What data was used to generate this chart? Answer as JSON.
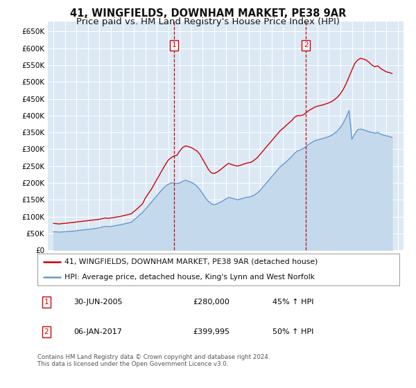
{
  "title": "41, WINGFIELDS, DOWNHAM MARKET, PE38 9AR",
  "subtitle": "Price paid vs. HM Land Registry's House Price Index (HPI)",
  "title_fontsize": 10.5,
  "subtitle_fontsize": 9.5,
  "ylim": [
    0,
    680000
  ],
  "yticks": [
    0,
    50000,
    100000,
    150000,
    200000,
    250000,
    300000,
    350000,
    400000,
    450000,
    500000,
    550000,
    600000,
    650000
  ],
  "ytick_labels": [
    "£0",
    "£50K",
    "£100K",
    "£150K",
    "£200K",
    "£250K",
    "£300K",
    "£350K",
    "£400K",
    "£450K",
    "£500K",
    "£550K",
    "£600K",
    "£650K"
  ],
  "xlim_start": 1994.5,
  "xlim_end": 2025.5,
  "background_color": "#ffffff",
  "plot_bg_color": "#dce9f5",
  "grid_color": "#ffffff",
  "red_line_color": "#cc0000",
  "blue_line_color": "#6699cc",
  "blue_fill_color": "#c5d9ed",
  "vline_color": "#cc0000",
  "sale1_x": 2005.5,
  "sale1_price": 280000,
  "sale1_label": "1",
  "sale1_date": "30-JUN-2005",
  "sale1_hpi": "45% ↑ HPI",
  "sale2_x": 2017.0,
  "sale2_price": 399995,
  "sale2_label": "2",
  "sale2_date": "06-JAN-2017",
  "sale2_hpi": "50% ↑ HPI",
  "legend_line1": "41, WINGFIELDS, DOWNHAM MARKET, PE38 9AR (detached house)",
  "legend_line2": "HPI: Average price, detached house, King's Lynn and West Norfolk",
  "footer": "Contains HM Land Registry data © Crown copyright and database right 2024.\nThis data is licensed under the Open Government Licence v3.0.",
  "red_data_x": [
    1995,
    1995.25,
    1995.5,
    1995.75,
    1996,
    1996.25,
    1996.5,
    1996.75,
    1997,
    1997.25,
    1997.5,
    1997.75,
    1998,
    1998.25,
    1998.5,
    1998.75,
    1999,
    1999.25,
    1999.5,
    1999.75,
    2000,
    2000.25,
    2000.5,
    2000.75,
    2001,
    2001.25,
    2001.5,
    2001.75,
    2002,
    2002.25,
    2002.5,
    2002.75,
    2003,
    2003.25,
    2003.5,
    2003.75,
    2004,
    2004.25,
    2004.5,
    2004.75,
    2005,
    2005.25,
    2005.5,
    2005.75,
    2006,
    2006.25,
    2006.5,
    2006.75,
    2007,
    2007.25,
    2007.5,
    2007.75,
    2008,
    2008.25,
    2008.5,
    2008.75,
    2009,
    2009.25,
    2009.5,
    2009.75,
    2010,
    2010.25,
    2010.5,
    2010.75,
    2011,
    2011.25,
    2011.5,
    2011.75,
    2012,
    2012.25,
    2012.5,
    2012.75,
    2013,
    2013.25,
    2013.5,
    2013.75,
    2014,
    2014.25,
    2014.5,
    2014.75,
    2015,
    2015.25,
    2015.5,
    2015.75,
    2016,
    2016.25,
    2016.5,
    2016.75,
    2017,
    2017.25,
    2017.5,
    2017.75,
    2018,
    2018.25,
    2018.5,
    2018.75,
    2019,
    2019.25,
    2019.5,
    2019.75,
    2020,
    2020.25,
    2020.5,
    2020.75,
    2021,
    2021.25,
    2021.5,
    2021.75,
    2022,
    2022.25,
    2022.5,
    2022.75,
    2023,
    2023.25,
    2023.5,
    2023.75,
    2024,
    2024.25,
    2024.5
  ],
  "red_data_y": [
    80000,
    79000,
    78000,
    79500,
    80000,
    81000,
    82000,
    82500,
    84000,
    85000,
    86000,
    87000,
    88000,
    89000,
    90000,
    91000,
    92000,
    94000,
    96000,
    95000,
    96000,
    97000,
    99000,
    100000,
    102000,
    104000,
    106000,
    108000,
    115000,
    122000,
    130000,
    138000,
    155000,
    168000,
    180000,
    195000,
    210000,
    225000,
    240000,
    255000,
    268000,
    275000,
    280000,
    282000,
    295000,
    305000,
    310000,
    308000,
    305000,
    300000,
    295000,
    285000,
    270000,
    255000,
    240000,
    230000,
    228000,
    232000,
    238000,
    245000,
    252000,
    258000,
    255000,
    252000,
    250000,
    252000,
    255000,
    258000,
    260000,
    262000,
    268000,
    275000,
    285000,
    295000,
    305000,
    315000,
    325000,
    335000,
    345000,
    355000,
    362000,
    370000,
    378000,
    385000,
    395000,
    400000,
    399995,
    402000,
    408000,
    415000,
    420000,
    425000,
    428000,
    430000,
    432000,
    435000,
    438000,
    442000,
    448000,
    455000,
    465000,
    478000,
    495000,
    515000,
    535000,
    555000,
    565000,
    570000,
    568000,
    565000,
    558000,
    550000,
    545000,
    548000,
    540000,
    535000,
    530000,
    528000,
    525000
  ],
  "blue_data_x": [
    1995,
    1995.25,
    1995.5,
    1995.75,
    1996,
    1996.25,
    1996.5,
    1996.75,
    1997,
    1997.25,
    1997.5,
    1997.75,
    1998,
    1998.25,
    1998.5,
    1998.75,
    1999,
    1999.25,
    1999.5,
    1999.75,
    2000,
    2000.25,
    2000.5,
    2000.75,
    2001,
    2001.25,
    2001.5,
    2001.75,
    2002,
    2002.25,
    2002.5,
    2002.75,
    2003,
    2003.25,
    2003.5,
    2003.75,
    2004,
    2004.25,
    2004.5,
    2004.75,
    2005,
    2005.25,
    2005.5,
    2005.75,
    2006,
    2006.25,
    2006.5,
    2006.75,
    2007,
    2007.25,
    2007.5,
    2007.75,
    2008,
    2008.25,
    2008.5,
    2008.75,
    2009,
    2009.25,
    2009.5,
    2009.75,
    2010,
    2010.25,
    2010.5,
    2010.75,
    2011,
    2011.25,
    2011.5,
    2011.75,
    2012,
    2012.25,
    2012.5,
    2012.75,
    2013,
    2013.25,
    2013.5,
    2013.75,
    2014,
    2014.25,
    2014.5,
    2014.75,
    2015,
    2015.25,
    2015.5,
    2015.75,
    2016,
    2016.25,
    2016.5,
    2016.75,
    2017,
    2017.25,
    2017.5,
    2017.75,
    2018,
    2018.25,
    2018.5,
    2018.75,
    2019,
    2019.25,
    2019.5,
    2019.75,
    2020,
    2020.25,
    2020.5,
    2020.75,
    2021,
    2021.25,
    2021.5,
    2021.75,
    2022,
    2022.25,
    2022.5,
    2022.75,
    2023,
    2023.25,
    2023.5,
    2023.75,
    2024,
    2024.25,
    2024.5
  ],
  "blue_data_y": [
    55000,
    54500,
    54000,
    54500,
    55000,
    55500,
    56000,
    57000,
    58000,
    59000,
    60000,
    61000,
    62000,
    63000,
    64000,
    65000,
    67000,
    69000,
    71000,
    70000,
    71000,
    72000,
    74000,
    75000,
    77000,
    79000,
    81000,
    83000,
    90000,
    97000,
    105000,
    112000,
    122000,
    132000,
    142000,
    152000,
    162000,
    172000,
    182000,
    190000,
    196000,
    200000,
    200000,
    198000,
    200000,
    205000,
    208000,
    205000,
    202000,
    197000,
    190000,
    180000,
    168000,
    155000,
    145000,
    138000,
    135000,
    138000,
    142000,
    147000,
    152000,
    157000,
    155000,
    153000,
    150000,
    152000,
    154000,
    157000,
    158000,
    160000,
    164000,
    170000,
    178000,
    188000,
    198000,
    208000,
    218000,
    228000,
    238000,
    248000,
    255000,
    262000,
    270000,
    278000,
    288000,
    295000,
    298000,
    302000,
    308000,
    315000,
    320000,
    325000,
    328000,
    330000,
    332000,
    335000,
    338000,
    342000,
    348000,
    355000,
    365000,
    378000,
    395000,
    415000,
    330000,
    345000,
    358000,
    360000,
    358000,
    355000,
    352000,
    350000,
    348000,
    350000,
    345000,
    342000,
    340000,
    338000,
    335000
  ]
}
